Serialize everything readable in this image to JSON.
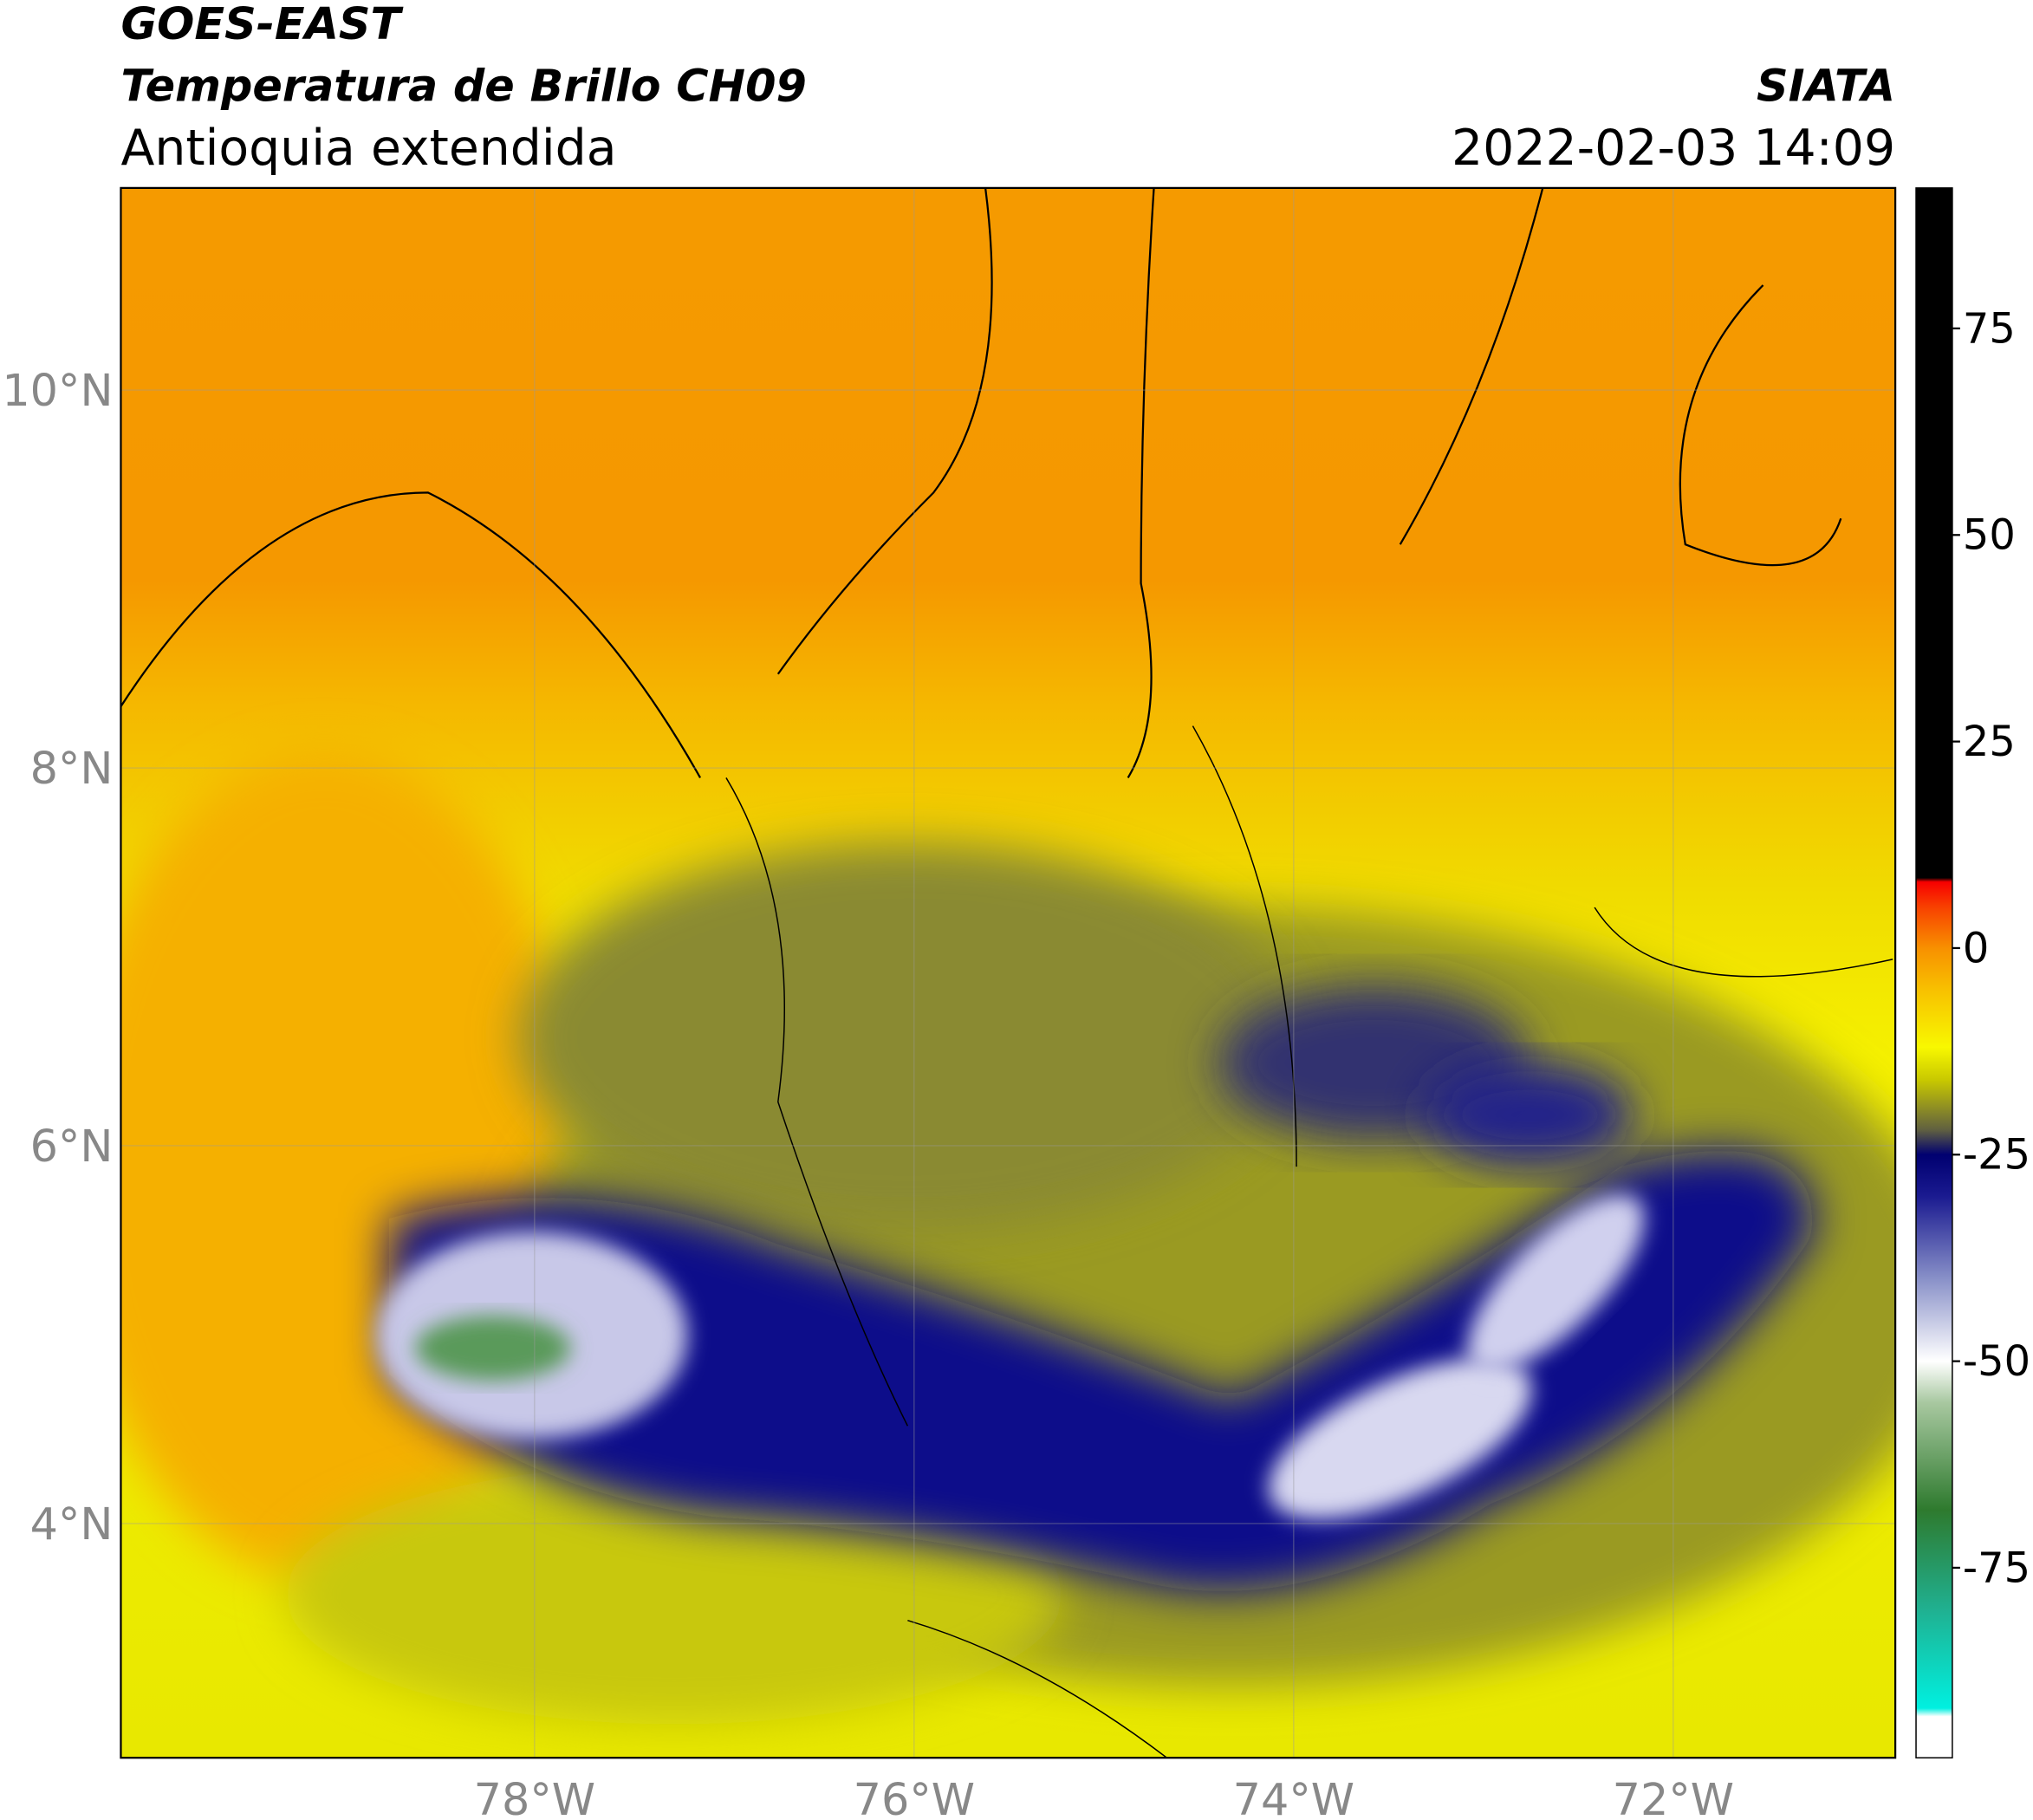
{
  "header": {
    "title": "GOES-EAST",
    "subtitle": "Temperatura de Brillo CH09",
    "region": "Antioquia extendida",
    "source": "SIATA",
    "datetime": "2022-02-03 14:09"
  },
  "map": {
    "xlim": [
      -80.18,
      -70.83
    ],
    "ylim": [
      2.76,
      11.07
    ],
    "xticks": [
      {
        "value": -78,
        "label": "78°W"
      },
      {
        "value": -76,
        "label": "76°W"
      },
      {
        "value": -74,
        "label": "74°W"
      },
      {
        "value": -72,
        "label": "72°W"
      }
    ],
    "yticks": [
      {
        "value": 4,
        "label": "4°N"
      },
      {
        "value": 6,
        "label": "6°N"
      },
      {
        "value": 8,
        "label": "8°N"
      },
      {
        "value": 10,
        "label": "10°N"
      }
    ],
    "grid": true,
    "colorbar": {
      "clim": [
        -98,
        92
      ],
      "ticks": [
        -75,
        -50,
        -25,
        0,
        25,
        50,
        75
      ],
      "colormap": [
        [
          -98,
          "#ffffff"
        ],
        [
          -93,
          "#ffffff"
        ],
        [
          -92,
          "#00f0e0"
        ],
        [
          -80,
          "#20b090"
        ],
        [
          -68,
          "#2e7a2e"
        ],
        [
          -55,
          "#a8c8a0"
        ],
        [
          -50,
          "#ffffff"
        ],
        [
          -40,
          "#8890c8"
        ],
        [
          -30,
          "#1a1a90"
        ],
        [
          -25,
          "#000070"
        ],
        [
          -22,
          "#606040"
        ],
        [
          -16,
          "#c8c800"
        ],
        [
          -12,
          "#f8f800"
        ],
        [
          -5,
          "#f8c000"
        ],
        [
          0,
          "#f89000"
        ],
        [
          5,
          "#f84000"
        ],
        [
          8,
          "#f80000"
        ],
        [
          8.5,
          "#000000"
        ],
        [
          92,
          "#000000"
        ]
      ]
    }
  }
}
